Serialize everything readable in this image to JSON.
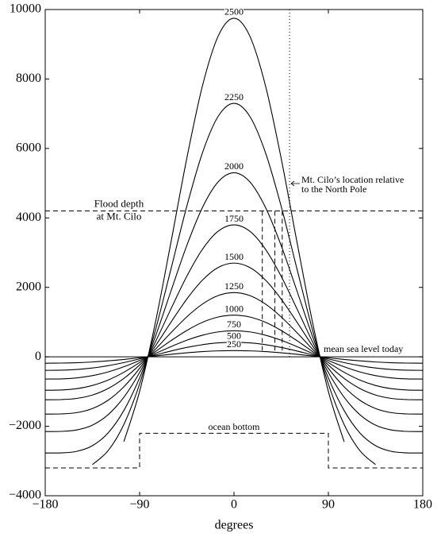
{
  "chart_data": {
    "type": "line",
    "xlabel": "degrees",
    "x": [
      -180,
      -165,
      -150,
      -135,
      -120,
      -105,
      -90,
      -75,
      -60,
      -45,
      -30,
      -15,
      0,
      15,
      30,
      45,
      60,
      75,
      90,
      105,
      120,
      135,
      150,
      165,
      180
    ],
    "series": [
      {
        "name": "250",
        "color": "#000000",
        "values": [
          -183,
          -180,
          -169,
          -148,
          -116,
          -75,
          -27,
          24,
          73,
          116,
          151,
          172,
          180,
          172,
          151,
          116,
          73,
          24,
          -27,
          -75,
          -116,
          -148,
          -169,
          -180,
          -183
        ]
      },
      {
        "name": "500",
        "color": "#000000",
        "values": [
          -389,
          -385,
          -365,
          -322,
          -256,
          -166,
          -60,
          54,
          168,
          270,
          350,
          402,
          420,
          402,
          350,
          270,
          168,
          54,
          -60,
          -166,
          -256,
          -322,
          -365,
          -385,
          -389
        ]
      },
      {
        "name": "750",
        "color": "#000000",
        "values": [
          -640,
          -635,
          -607,
          -542,
          -434,
          -286,
          -105,
          94,
          295,
          478,
          623,
          718,
          750,
          718,
          623,
          478,
          295,
          94,
          -105,
          -286,
          -434,
          -542,
          -607,
          -635,
          -640
        ]
      },
      {
        "name": "1000",
        "color": "#000000",
        "values": [
          -961,
          -955,
          -917,
          -825,
          -668,
          -444,
          -164,
          149,
          467,
          759,
          995,
          1147,
          1200,
          1147,
          995,
          759,
          467,
          149,
          -164,
          -444,
          -668,
          -825,
          -917,
          -955,
          -961
        ]
      },
      {
        "name": "1250",
        "color": "#000000",
        "values": [
          -1236,
          -1232,
          -1198,
          -1100,
          -912,
          -622,
          -236,
          218,
          697,
          1150,
          1521,
          1765,
          1850,
          1765,
          1521,
          1150,
          697,
          218,
          -236,
          -622,
          -912,
          -1100,
          -1198,
          -1232,
          -1236
        ]
      },
      {
        "name": "1500",
        "color": "#000000",
        "values": [
          -1648,
          -1644,
          -1607,
          -1489,
          -1249,
          -862,
          -331,
          310,
          1001,
          1662,
          2210,
          2573,
          2700,
          2573,
          2210,
          1662,
          1001,
          310,
          -331,
          -862,
          -1249,
          -1489,
          -1607,
          -1644,
          -1648
        ]
      },
      {
        "name": "1750",
        "color": "#000000",
        "values": [
          -2151,
          -2147,
          -2106,
          -1967,
          -1665,
          -1162,
          -451,
          426,
          1386,
          2319,
          3099,
          3618,
          3800,
          3618,
          3099,
          2319,
          1386,
          426,
          -451,
          -1162,
          -1665,
          -1967,
          -2106,
          -2147,
          -2151
        ]
      },
      {
        "name": "2000",
        "color": "#000000",
        "values": [
          -2769,
          -2766,
          -2722,
          -2559,
          -2190,
          -1545,
          -607,
          579,
          1902,
          3204,
          4304,
          5041,
          5300,
          5041,
          4304,
          3204,
          1902,
          579,
          -607,
          -1545,
          -2190,
          -2559,
          -2722,
          -2766,
          -2769
        ]
      },
      {
        "name": "2250",
        "color": "#000000",
        "values": [
          null,
          null,
          null,
          -3102,
          -2701,
          -1946,
          -780,
          760,
          2538,
          4334,
          5881,
          6929,
          7300,
          6929,
          5881,
          4334,
          2538,
          760,
          -780,
          -1946,
          -2701,
          -3102,
          null,
          null,
          null
        ]
      },
      {
        "name": "2500",
        "color": "#000000",
        "values": [
          null,
          null,
          null,
          null,
          null,
          -2442,
          -996,
          979,
          3315,
          5714,
          7810,
          9241,
          9750,
          9241,
          7810,
          5714,
          3315,
          979,
          -996,
          -2442,
          null,
          null,
          null,
          null,
          null
        ]
      }
    ],
    "xlim": [
      -180,
      180
    ],
    "ylim": [
      -4000,
      10000
    ],
    "xticks": [
      {
        "value": -180,
        "label": "−180"
      },
      {
        "value": -90,
        "label": "−90"
      },
      0,
      90,
      180
    ],
    "yticks": [
      {
        "value": -4000,
        "label": "−4000"
      },
      {
        "value": -2000,
        "label": "−2000"
      },
      0,
      2000,
      4000,
      6000,
      8000,
      10000
    ],
    "flood_depth": {
      "value": 4200,
      "label_lines": [
        "Flood depth",
        "at Mt. Cilo"
      ],
      "markers_x": [
        27,
        39,
        46
      ]
    },
    "mt_cilo": {
      "x": 53,
      "label_lines": [
        "Mt. Cilo’s location relative",
        "to the North Pole"
      ]
    },
    "sea_level": {
      "value": 0,
      "label": "mean sea level today"
    },
    "ocean_bottom": {
      "label": "ocean bottom",
      "x": [
        -180,
        -90,
        -90,
        90,
        90,
        180
      ],
      "values": [
        -3200,
        -3200,
        -2200,
        -2200,
        -3200,
        -3200
      ]
    }
  }
}
